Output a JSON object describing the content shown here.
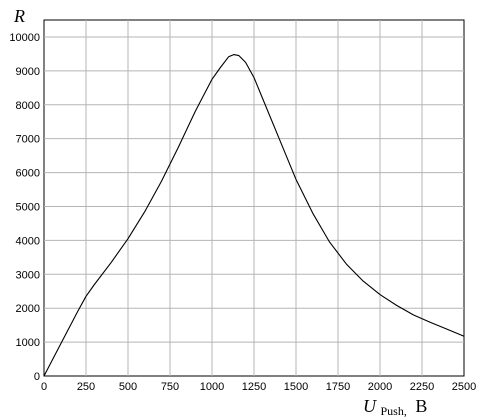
{
  "chart_data": {
    "type": "line",
    "title": "",
    "ylabel": "R",
    "xlabel_main": "U",
    "xlabel_sub": "Push,",
    "xlabel_unit": "B",
    "xlim": [
      0,
      2500
    ],
    "ylim": [
      0,
      10500
    ],
    "grid": true,
    "x_ticks": [
      0,
      250,
      500,
      750,
      1000,
      1250,
      1500,
      1750,
      2000,
      2250,
      2500
    ],
    "y_ticks": [
      0,
      1000,
      2000,
      3000,
      4000,
      5000,
      6000,
      7000,
      8000,
      9000,
      10000
    ],
    "series": [
      {
        "name": "",
        "color": "#000000",
        "x": [
          0,
          100,
          200,
          250,
          300,
          400,
          500,
          600,
          700,
          800,
          900,
          1000,
          1050,
          1100,
          1130,
          1160,
          1200,
          1250,
          1300,
          1400,
          1500,
          1600,
          1700,
          1800,
          1900,
          2000,
          2100,
          2200,
          2300,
          2400,
          2500
        ],
        "y": [
          0,
          950,
          1900,
          2350,
          2700,
          3350,
          4050,
          4850,
          5750,
          6750,
          7800,
          8750,
          9100,
          9420,
          9480,
          9450,
          9250,
          8800,
          8200,
          7000,
          5800,
          4800,
          3950,
          3300,
          2800,
          2400,
          2080,
          1800,
          1580,
          1380,
          1170
        ]
      }
    ]
  }
}
